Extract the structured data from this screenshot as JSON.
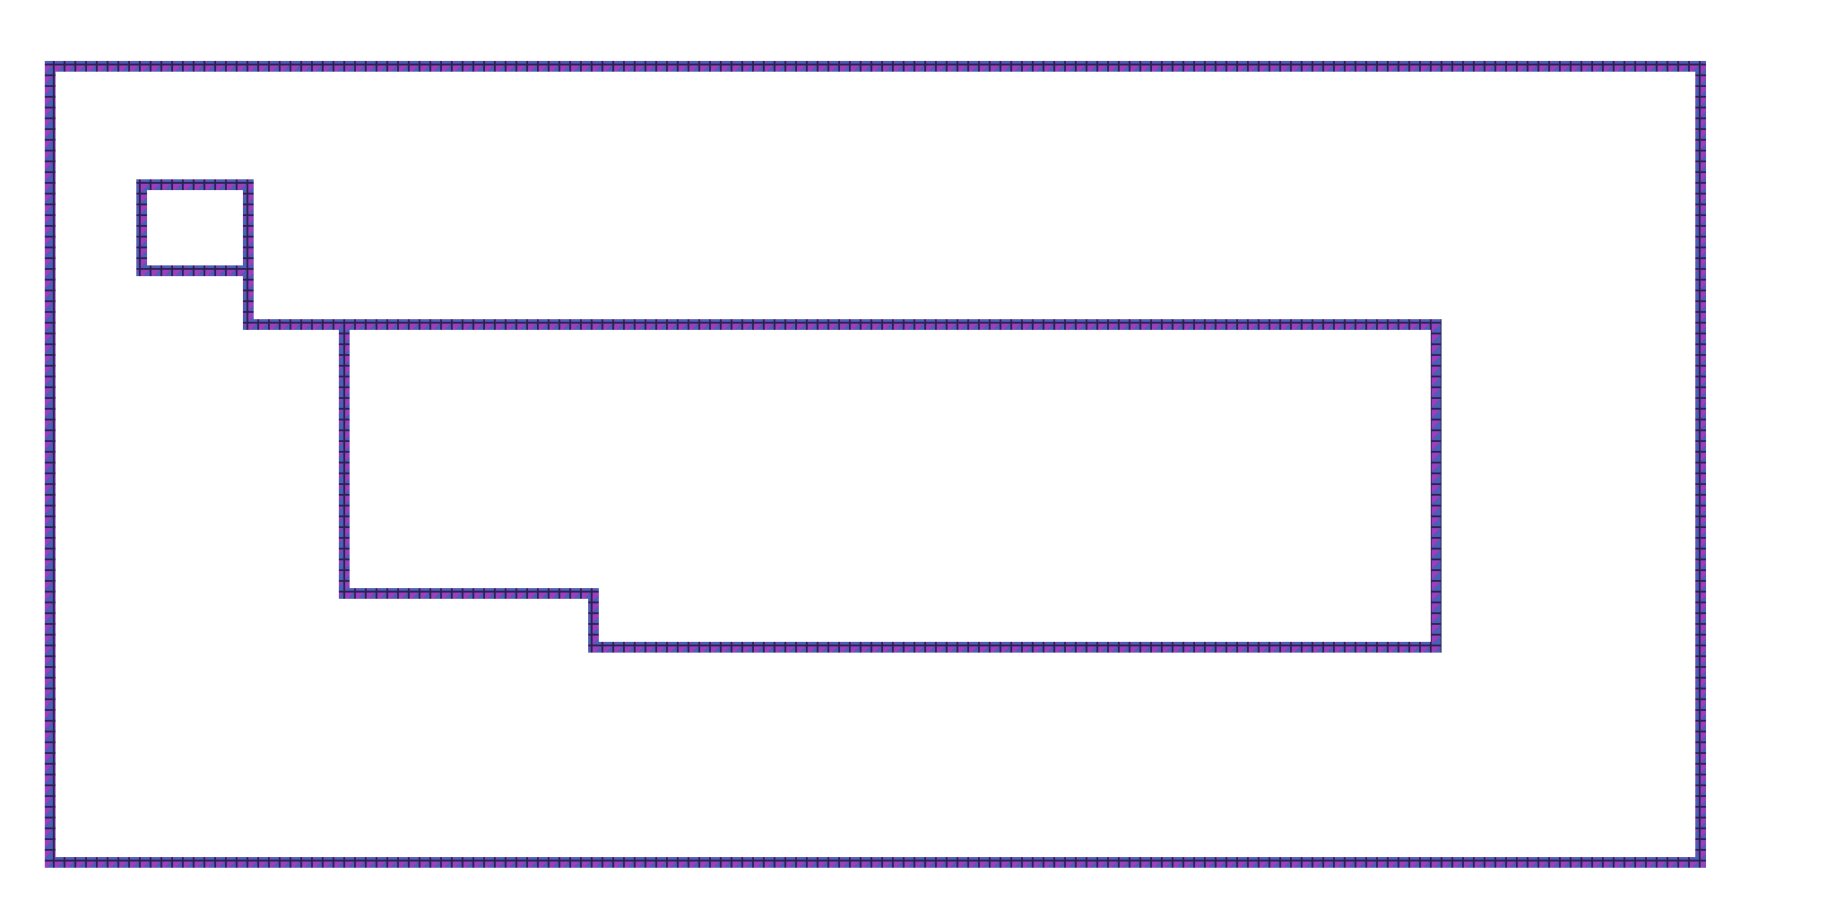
{
  "game": {
    "view": "tile-map",
    "tile_style": "diagonally split square, purple and blue halves with dark outline",
    "background_color": "#ffffff",
    "tile_colors": {
      "purple": "#9b3fbf",
      "blue": "#4a5fb8",
      "outline": "#2a2250",
      "divider": "#5a3f9a"
    },
    "walls": [
      {
        "name": "outer-boundary-wall"
      },
      {
        "name": "small-room-wall"
      },
      {
        "name": "connector-wall"
      },
      {
        "name": "large-stepped-room-wall"
      }
    ]
  }
}
